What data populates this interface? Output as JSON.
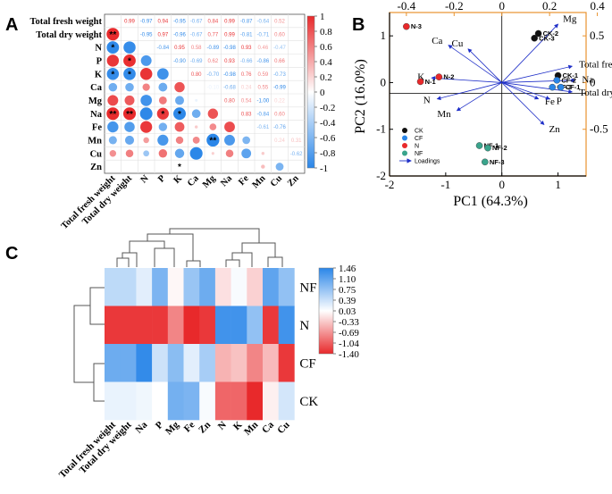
{
  "panel_labels": {
    "a": "A",
    "b": "B",
    "c": "C"
  },
  "colors": {
    "red": "#e8292b",
    "blue": "#2a86e8",
    "pca_axis": "#e8922e",
    "loading": "#1f2fc8",
    "grid": "#d8d8d8"
  },
  "chart_data": [
    {
      "type": "heatmap",
      "panel": "A",
      "subtype": "correlation-matrix",
      "variables": [
        "Total fresh weight",
        "Total dry weight",
        "N",
        "P",
        "K",
        "Ca",
        "Mg",
        "Na",
        "Fe",
        "Mn",
        "Cu",
        "Zn"
      ],
      "upper_triangle_values": [
        [
          0.99,
          -0.97,
          0.94,
          -0.95,
          -0.67,
          0.84,
          0.99,
          -0.87,
          -0.64,
          0.52
        ],
        [
          -0.95,
          0.97,
          -0.96,
          -0.67,
          0.77,
          0.99,
          -0.81,
          -0.71,
          0.6
        ],
        [
          -0.84,
          0.95,
          0.58,
          -0.89,
          -0.98,
          0.93,
          0.46,
          -0.47
        ],
        [
          -0.9,
          -0.69,
          0.62,
          0.93,
          -0.66,
          -0.86,
          0.66
        ],
        [
          0.8,
          -0.7,
          -0.98,
          0.76,
          0.59,
          -0.73
        ],
        [
          -0.1,
          -0.68,
          0.24,
          0.55,
          -0.99
        ],
        [
          0.8,
          0.54,
          -1.0,
          0.22
        ],
        [
          0.83,
          -0.84,
          0.6
        ],
        [
          -0.61,
          -0.76
        ],
        [
          0.24,
          0.31
        ],
        [
          -0.62
        ]
      ],
      "lower_triangle_stars": [
        [
          "Total dry weight",
          "Total fresh weight",
          "**"
        ],
        [
          "N",
          "Total fresh weight",
          "*"
        ],
        [
          "P",
          "Total dry weight",
          "*"
        ],
        [
          "K",
          "Total fresh weight",
          "*"
        ],
        [
          "K",
          "Total dry weight",
          "*"
        ],
        [
          "Na",
          "Total fresh weight",
          "**"
        ],
        [
          "Na",
          "Total dry weight",
          "**"
        ],
        [
          "Na",
          "P",
          "*"
        ],
        [
          "Na",
          "K",
          "*"
        ],
        [
          "Mn",
          "Mg",
          "**"
        ],
        [
          "Zn",
          "K",
          "*"
        ]
      ],
      "colorbar": {
        "range": [
          -1,
          1
        ],
        "ticks": [
          "1",
          "0.8",
          "0.6",
          "0.4",
          "0.2",
          "0",
          "-0.2",
          "-0.4",
          "-0.6",
          "-0.8",
          "-1"
        ]
      }
    },
    {
      "type": "scatter",
      "panel": "B",
      "subtype": "PCA biplot",
      "xlabel": "PC1 (64.3%)",
      "ylabel": "PC2 (16.0%)",
      "xlim": [
        -2,
        1.5
      ],
      "ylim": [
        -2,
        1.5
      ],
      "x_ticks": [
        "-2",
        "-1",
        "0",
        "1"
      ],
      "y_ticks": [
        "1",
        "0",
        "-1",
        "-2"
      ],
      "top_ticks": [
        "-0.4",
        "-0.2",
        "0",
        "0.2",
        "0.4"
      ],
      "right_ticks": [
        "0.5",
        "0",
        "-0.5"
      ],
      "points": [
        {
          "label": "N-3",
          "x": -1.7,
          "y": 1.2,
          "group": "N"
        },
        {
          "label": "N-1",
          "x": -1.45,
          "y": 0.02,
          "group": "N"
        },
        {
          "label": "N-2",
          "x": -1.12,
          "y": 0.12,
          "group": "N"
        },
        {
          "label": "CK-2",
          "x": 0.65,
          "y": 1.05,
          "group": "CK"
        },
        {
          "label": "CK-3",
          "x": 0.58,
          "y": 0.95,
          "group": "CK"
        },
        {
          "label": "CK-1",
          "x": 1.0,
          "y": 0.15,
          "group": "CK"
        },
        {
          "label": "CF-2",
          "x": 0.98,
          "y": 0.05,
          "group": "CF"
        },
        {
          "label": "CF-3",
          "x": 0.9,
          "y": -0.1,
          "group": "CF"
        },
        {
          "label": "CF-1",
          "x": 1.05,
          "y": -0.1,
          "group": "CF"
        },
        {
          "label": "NF-1",
          "x": -0.4,
          "y": -1.35,
          "group": "NF"
        },
        {
          "label": "NF-2",
          "x": -0.25,
          "y": -1.4,
          "group": "NF"
        },
        {
          "label": "NF-3",
          "x": -0.3,
          "y": -1.7,
          "group": "NF"
        }
      ],
      "loadings": [
        {
          "label": "Mg",
          "x": 1.0,
          "y": 1.25
        },
        {
          "label": "Total fresh weight",
          "x": 1.25,
          "y": 0.35
        },
        {
          "label": "Na",
          "x": 1.3,
          "y": 0.05
        },
        {
          "label": "Total dry weight",
          "x": 1.25,
          "y": -0.2
        },
        {
          "label": "Fe",
          "x": 0.65,
          "y": -0.35
        },
        {
          "label": "P",
          "x": 0.85,
          "y": -0.35
        },
        {
          "label": "Zn",
          "x": 0.75,
          "y": -0.9
        },
        {
          "label": "Ca",
          "x": -0.95,
          "y": 0.8
        },
        {
          "label": "Cu",
          "x": -0.6,
          "y": 0.72
        },
        {
          "label": "K",
          "x": -1.25,
          "y": 0.1
        },
        {
          "label": "N",
          "x": -1.15,
          "y": -0.35
        },
        {
          "label": "Mn",
          "x": -0.8,
          "y": -0.6
        }
      ],
      "legend": [
        {
          "label": "CK",
          "color": "#111111"
        },
        {
          "label": "CF",
          "color": "#2a86e8"
        },
        {
          "label": "N",
          "color": "#e8292b"
        },
        {
          "label": "NF",
          "color": "#3aa48c"
        },
        {
          "label": "Loadings",
          "color": "#1f2fc8"
        }
      ]
    },
    {
      "type": "heatmap",
      "panel": "C",
      "subtype": "clustered heatmap",
      "rows": [
        "NF",
        "N",
        "CF",
        "CK"
      ],
      "columns": [
        "Total fresh weight",
        "Total dry weight",
        "Na",
        "P",
        "Mg",
        "Fe",
        "Zn",
        "N",
        "K",
        "Mn",
        "Ca",
        "Cu"
      ],
      "values": [
        [
          0.45,
          0.45,
          0.2,
          0.9,
          -0.05,
          0.7,
          1.0,
          -0.2,
          0.05,
          -0.3,
          1.1,
          0.75
        ],
        [
          -1.3,
          -1.3,
          -1.3,
          -1.3,
          -0.8,
          -1.4,
          -1.3,
          1.3,
          1.3,
          0.75,
          -1.3,
          1.3
        ],
        [
          1.0,
          1.0,
          1.4,
          0.35,
          0.8,
          0.2,
          0.6,
          -0.5,
          -0.4,
          -0.8,
          -0.45,
          -1.3
        ],
        [
          0.15,
          0.15,
          0.1,
          0.0,
          0.95,
          0.9,
          0.05,
          -1.0,
          -1.0,
          -1.4,
          -0.1,
          0.3
        ]
      ],
      "colorbar": {
        "range": [
          -1.4,
          1.46
        ],
        "ticks": [
          "1.46",
          "1.10",
          "0.75",
          "0.39",
          "0.03",
          "-0.33",
          "-0.69",
          "-1.04",
          "-1.40"
        ]
      }
    }
  ]
}
